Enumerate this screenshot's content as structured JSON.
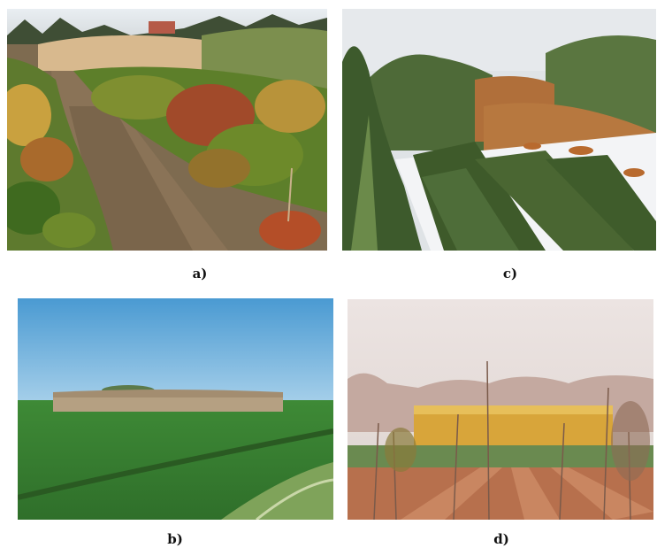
{
  "captions": {
    "a": "a)",
    "b": "b)",
    "c": "c)",
    "d": "d)"
  },
  "colors": {
    "background": "#ffffff",
    "caption_text": "#111111"
  }
}
